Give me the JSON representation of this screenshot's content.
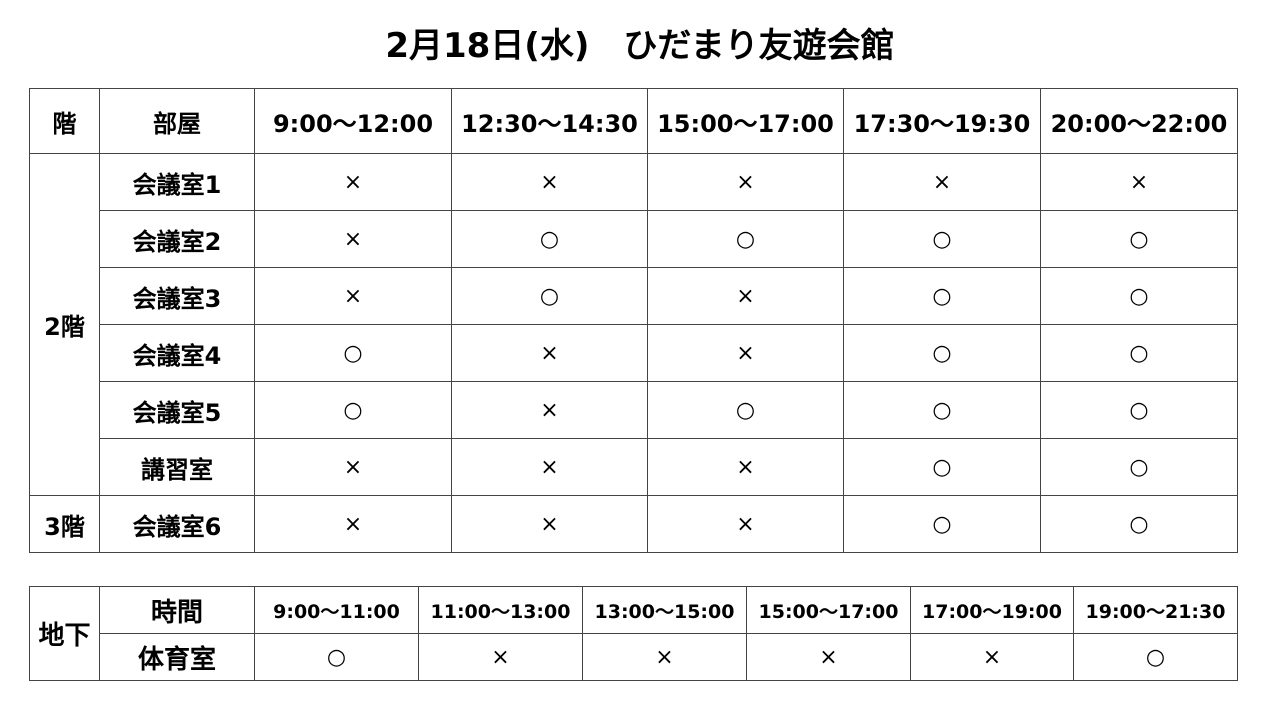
{
  "title": "2月18日(水)　ひだまり友遊会館",
  "main_table": {
    "headers": [
      "階",
      "部屋",
      "9:00～12:00",
      "12:30～14:30",
      "15:00～17:00",
      "17:30～19:30",
      "20:00～22:00"
    ],
    "floors": [
      {
        "label": "2階",
        "rooms": [
          {
            "name": "会議室1",
            "slots": [
              "×",
              "×",
              "×",
              "×",
              "×"
            ]
          },
          {
            "name": "会議室2",
            "slots": [
              "×",
              "○",
              "○",
              "○",
              "○"
            ]
          },
          {
            "name": "会議室3",
            "slots": [
              "×",
              "○",
              "×",
              "○",
              "○"
            ]
          },
          {
            "name": "会議室4",
            "slots": [
              "○",
              "×",
              "×",
              "○",
              "○"
            ]
          },
          {
            "name": "会議室5",
            "slots": [
              "○",
              "×",
              "○",
              "○",
              "○"
            ]
          },
          {
            "name": "講習室",
            "slots": [
              "×",
              "×",
              "×",
              "○",
              "○"
            ]
          }
        ]
      },
      {
        "label": "3階",
        "rooms": [
          {
            "name": "会議室6",
            "slots": [
              "×",
              "×",
              "×",
              "○",
              "○"
            ]
          }
        ]
      }
    ]
  },
  "basement_table": {
    "floor": "地下",
    "time_label": "時間",
    "times": [
      "9:00～11:00",
      "11:00～13:00",
      "13:00～15:00",
      "15:00～17:00",
      "17:00～19:00",
      "19:00～21:30"
    ],
    "room": "体育室",
    "slots": [
      "○",
      "×",
      "×",
      "×",
      "×",
      "○"
    ]
  }
}
